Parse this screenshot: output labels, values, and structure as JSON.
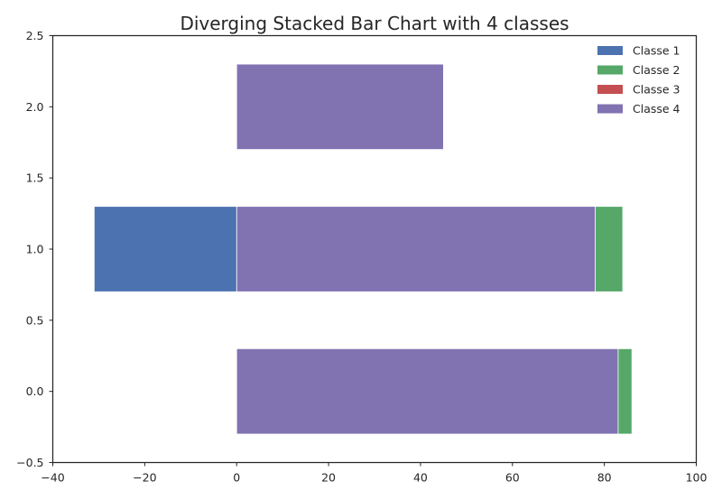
{
  "chart_data": {
    "type": "bar",
    "orientation": "horizontal",
    "stacked": true,
    "diverging": true,
    "title": "Diverging Stacked Bar Chart with 4 classes",
    "xlabel": "",
    "ylabel": "",
    "xlim": [
      -40,
      100
    ],
    "ylim": [
      -0.5,
      2.5
    ],
    "xticks": [
      -40,
      -20,
      0,
      20,
      40,
      60,
      80,
      100
    ],
    "xtick_labels": [
      "−40",
      "−20",
      "0",
      "20",
      "40",
      "60",
      "80",
      "100"
    ],
    "yticks": [
      -0.5,
      0.0,
      0.5,
      1.0,
      1.5,
      2.0,
      2.5
    ],
    "ytick_labels": [
      "−0.5",
      "0.0",
      "0.5",
      "1.0",
      "1.5",
      "2.0",
      "2.5"
    ],
    "categories": [
      0,
      1,
      2
    ],
    "bar_height": 0.6,
    "grid": false,
    "legend_position": "top-right",
    "series": [
      {
        "name": "Classe 1",
        "color": "#4c72b0",
        "values": [
          0,
          -31,
          0
        ]
      },
      {
        "name": "Classe 2",
        "color": "#55a868",
        "values": [
          3,
          6,
          0
        ]
      },
      {
        "name": "Classe 3",
        "color": "#c44e52",
        "values": [
          0,
          0,
          0
        ]
      },
      {
        "name": "Classe 4",
        "color": "#8172b2",
        "values": [
          83,
          78,
          45
        ]
      }
    ],
    "stack_order_positive": [
      "Classe 4",
      "Classe 2",
      "Classe 3"
    ],
    "stack_order_negative": [
      "Classe 1"
    ]
  }
}
